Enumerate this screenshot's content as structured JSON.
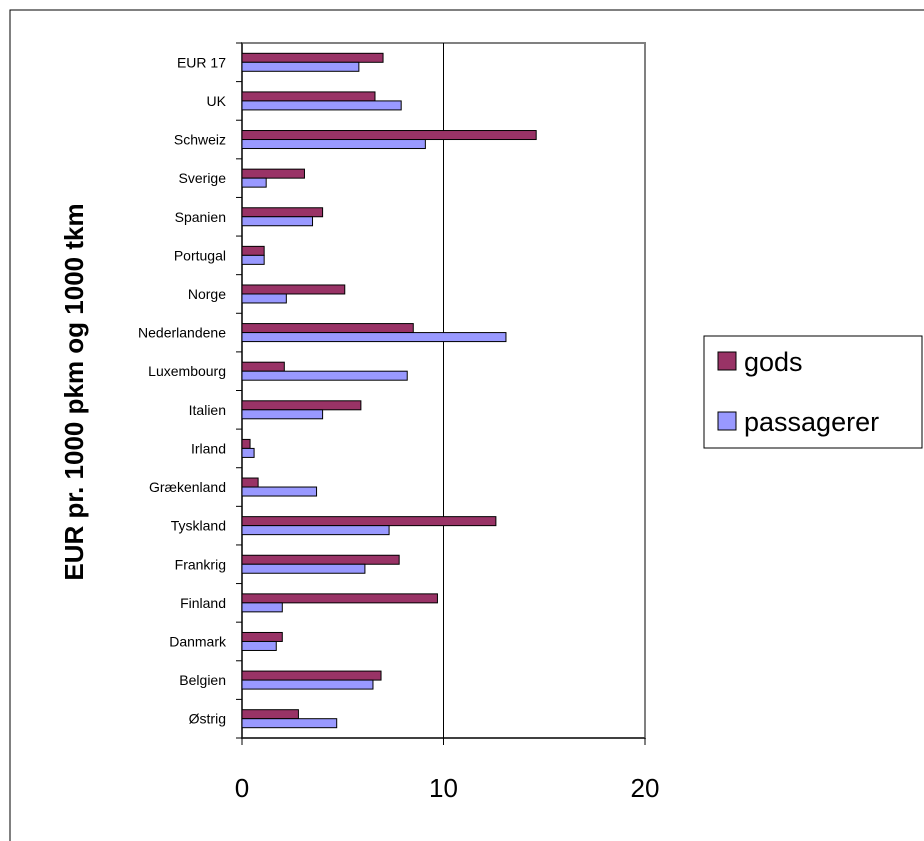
{
  "chart_data": {
    "type": "bar",
    "orientation": "horizontal",
    "title": "",
    "xlabel": "",
    "ylabel": "EUR pr. 1000 pkm og 1000 tkm",
    "xlim": [
      0,
      20
    ],
    "xticks": [
      0,
      10,
      20
    ],
    "grid": "vertical major lines",
    "legend_position": "right",
    "categories": [
      "EUR 17",
      "UK",
      "Schweiz",
      "Sverige",
      "Spanien",
      "Portugal",
      "Norge",
      "Nederlandene",
      "Luxembourg",
      "Italien",
      "Irland",
      "Grækenland",
      "Tyskland",
      "Frankrig",
      "Finland",
      "Danmark",
      "Belgien",
      "Østrig"
    ],
    "series": [
      {
        "name": "gods",
        "color": "#993366",
        "values": [
          7.0,
          6.6,
          14.6,
          3.1,
          4.0,
          1.1,
          5.1,
          8.5,
          2.1,
          5.9,
          0.4,
          0.8,
          12.6,
          7.8,
          9.7,
          2.0,
          6.9,
          2.8
        ]
      },
      {
        "name": "passagerer",
        "color": "#9999ff",
        "values": [
          5.8,
          7.9,
          9.1,
          1.2,
          3.5,
          1.1,
          2.2,
          13.1,
          8.2,
          4.0,
          0.6,
          3.7,
          7.3,
          6.1,
          2.0,
          1.7,
          6.5,
          4.7
        ]
      }
    ]
  }
}
